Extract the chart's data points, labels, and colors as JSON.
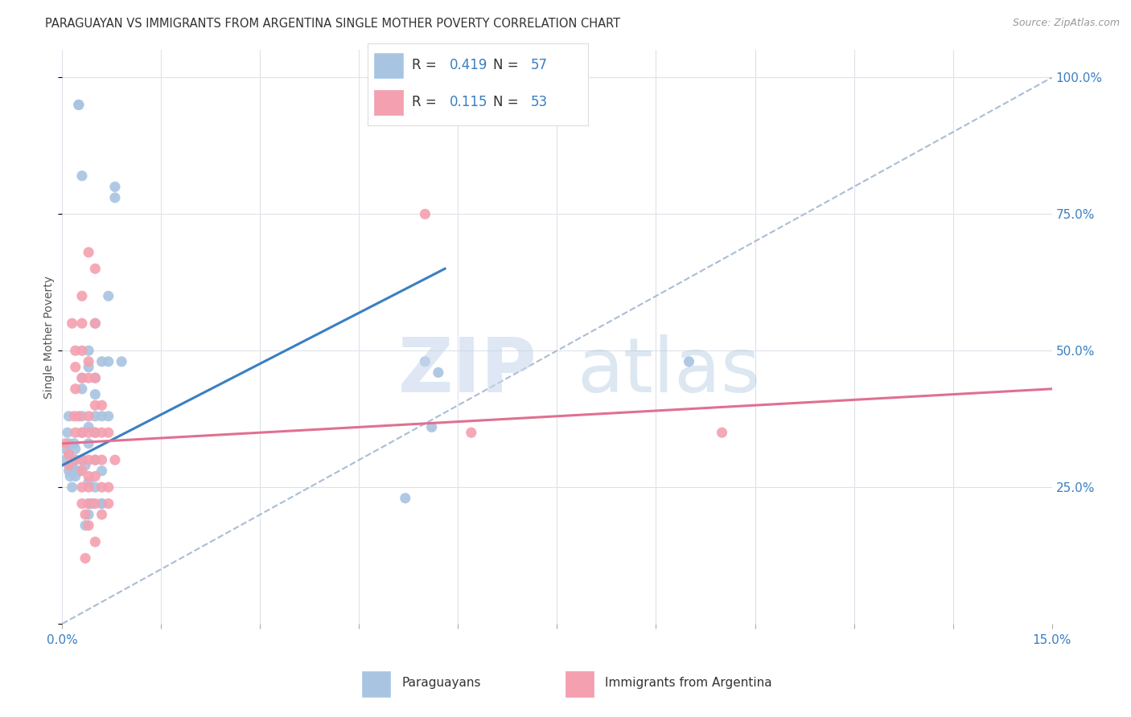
{
  "title": "PARAGUAYAN VS IMMIGRANTS FROM ARGENTINA SINGLE MOTHER POVERTY CORRELATION CHART",
  "source": "Source: ZipAtlas.com",
  "ylabel": "Single Mother Poverty",
  "right_yticklabels": [
    "25.0%",
    "50.0%",
    "75.0%",
    "100.0%"
  ],
  "right_ytick_vals": [
    0.25,
    0.5,
    0.75,
    1.0
  ],
  "xlim": [
    0.0,
    0.15
  ],
  "ylim": [
    0.0,
    1.05
  ],
  "blue_R": 0.419,
  "blue_N": 57,
  "pink_R": 0.115,
  "pink_N": 53,
  "blue_color": "#a8c4e0",
  "pink_color": "#f4a0b0",
  "blue_line_color": "#3a7fc1",
  "pink_line_color": "#e07090",
  "ref_line_color": "#aabdd4",
  "watermark_zip": "ZIP",
  "watermark_atlas": "atlas",
  "legend_label_blue": "Paraguayans",
  "legend_label_pink": "Immigrants from Argentina",
  "blue_dots": [
    [
      0.0005,
      0.32
    ],
    [
      0.0005,
      0.3
    ],
    [
      0.001,
      0.28
    ],
    [
      0.001,
      0.33
    ],
    [
      0.0008,
      0.35
    ],
    [
      0.001,
      0.38
    ],
    [
      0.0015,
      0.29
    ],
    [
      0.001,
      0.31
    ],
    [
      0.0012,
      0.27
    ],
    [
      0.002,
      0.3
    ],
    [
      0.0018,
      0.33
    ],
    [
      0.002,
      0.28
    ],
    [
      0.0015,
      0.25
    ],
    [
      0.002,
      0.27
    ],
    [
      0.002,
      0.32
    ],
    [
      0.003,
      0.45
    ],
    [
      0.003,
      0.43
    ],
    [
      0.003,
      0.38
    ],
    [
      0.003,
      0.35
    ],
    [
      0.003,
      0.3
    ],
    [
      0.0025,
      0.28
    ],
    [
      0.004,
      0.5
    ],
    [
      0.004,
      0.47
    ],
    [
      0.004,
      0.36
    ],
    [
      0.004,
      0.33
    ],
    [
      0.0035,
      0.29
    ],
    [
      0.004,
      0.26
    ],
    [
      0.004,
      0.22
    ],
    [
      0.005,
      0.55
    ],
    [
      0.005,
      0.45
    ],
    [
      0.005,
      0.42
    ],
    [
      0.005,
      0.38
    ],
    [
      0.005,
      0.35
    ],
    [
      0.005,
      0.3
    ],
    [
      0.005,
      0.25
    ],
    [
      0.0045,
      0.22
    ],
    [
      0.004,
      0.2
    ],
    [
      0.0035,
      0.18
    ],
    [
      0.006,
      0.48
    ],
    [
      0.006,
      0.38
    ],
    [
      0.006,
      0.28
    ],
    [
      0.006,
      0.22
    ],
    [
      0.007,
      0.6
    ],
    [
      0.007,
      0.48
    ],
    [
      0.007,
      0.38
    ],
    [
      0.006,
      0.22
    ],
    [
      0.008,
      0.8
    ],
    [
      0.008,
      0.78
    ],
    [
      0.0025,
      0.95
    ],
    [
      0.0025,
      0.95
    ],
    [
      0.003,
      0.82
    ],
    [
      0.009,
      0.48
    ],
    [
      0.055,
      0.48
    ],
    [
      0.057,
      0.46
    ],
    [
      0.095,
      0.48
    ],
    [
      0.056,
      0.36
    ],
    [
      0.052,
      0.23
    ]
  ],
  "pink_dots": [
    [
      0.0005,
      0.33
    ],
    [
      0.001,
      0.31
    ],
    [
      0.001,
      0.29
    ],
    [
      0.0015,
      0.55
    ],
    [
      0.002,
      0.5
    ],
    [
      0.002,
      0.47
    ],
    [
      0.002,
      0.43
    ],
    [
      0.0018,
      0.38
    ],
    [
      0.002,
      0.35
    ],
    [
      0.002,
      0.3
    ],
    [
      0.003,
      0.6
    ],
    [
      0.003,
      0.55
    ],
    [
      0.003,
      0.5
    ],
    [
      0.003,
      0.45
    ],
    [
      0.0025,
      0.38
    ],
    [
      0.003,
      0.35
    ],
    [
      0.003,
      0.3
    ],
    [
      0.003,
      0.28
    ],
    [
      0.003,
      0.25
    ],
    [
      0.003,
      0.22
    ],
    [
      0.004,
      0.68
    ],
    [
      0.004,
      0.48
    ],
    [
      0.004,
      0.45
    ],
    [
      0.004,
      0.38
    ],
    [
      0.004,
      0.35
    ],
    [
      0.004,
      0.3
    ],
    [
      0.004,
      0.27
    ],
    [
      0.004,
      0.25
    ],
    [
      0.004,
      0.22
    ],
    [
      0.0035,
      0.2
    ],
    [
      0.004,
      0.18
    ],
    [
      0.0035,
      0.12
    ],
    [
      0.005,
      0.65
    ],
    [
      0.005,
      0.55
    ],
    [
      0.005,
      0.45
    ],
    [
      0.005,
      0.4
    ],
    [
      0.005,
      0.35
    ],
    [
      0.005,
      0.3
    ],
    [
      0.005,
      0.27
    ],
    [
      0.005,
      0.22
    ],
    [
      0.005,
      0.15
    ],
    [
      0.006,
      0.4
    ],
    [
      0.006,
      0.35
    ],
    [
      0.006,
      0.3
    ],
    [
      0.006,
      0.25
    ],
    [
      0.006,
      0.2
    ],
    [
      0.007,
      0.35
    ],
    [
      0.007,
      0.25
    ],
    [
      0.007,
      0.22
    ],
    [
      0.008,
      0.3
    ],
    [
      0.055,
      0.75
    ],
    [
      0.062,
      0.35
    ],
    [
      0.1,
      0.35
    ]
  ],
  "blue_line": [
    [
      0.0,
      0.29
    ],
    [
      0.058,
      0.65
    ]
  ],
  "pink_line": [
    [
      0.0,
      0.33
    ],
    [
      0.15,
      0.43
    ]
  ],
  "ref_line": [
    [
      0.0,
      0.0
    ],
    [
      0.15,
      1.0
    ]
  ],
  "background_color": "#ffffff",
  "grid_color": "#dde2ea",
  "title_fontsize": 10.5,
  "source_fontsize": 9,
  "axis_color": "#3a7fc1"
}
